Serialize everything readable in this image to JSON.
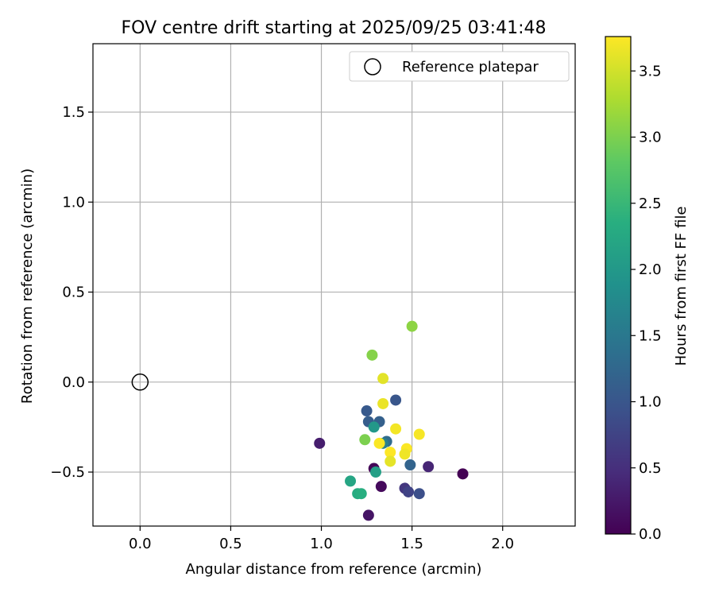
{
  "chart_data": {
    "type": "scatter",
    "title": "FOV centre drift starting at 2025/09/25 03:41:48",
    "xlabel": "Angular distance from reference (arcmin)",
    "ylabel": "Rotation from reference (arcmin)",
    "xlim": [
      -0.26,
      2.4
    ],
    "ylim": [
      -0.8,
      1.88
    ],
    "xticks": [
      0.0,
      0.5,
      1.0,
      1.5,
      2.0
    ],
    "xtick_labels": [
      "0.0",
      "0.5",
      "1.0",
      "1.5",
      "2.0"
    ],
    "yticks": [
      -0.5,
      0.0,
      0.5,
      1.0,
      1.5
    ],
    "ytick_labels": [
      "−0.5",
      "0.0",
      "0.5",
      "1.0",
      "1.5"
    ],
    "grid": true,
    "legend": {
      "label": "Reference platepar",
      "position": "top-right"
    },
    "reference_point": {
      "x": 0.0,
      "y": 0.0
    },
    "colorbar": {
      "label": "Hours from first FF file",
      "colormap": "viridis",
      "range": [
        0.0,
        3.76
      ],
      "ticks": [
        0.0,
        0.5,
        1.0,
        1.5,
        2.0,
        2.5,
        3.0,
        3.5
      ],
      "tick_labels": [
        "0.0",
        "0.5",
        "1.0",
        "1.5",
        "2.0",
        "2.5",
        "3.0",
        "3.5"
      ]
    },
    "points": [
      {
        "x": 1.78,
        "y": -0.51,
        "hours": 0.0
      },
      {
        "x": 1.29,
        "y": -0.48,
        "hours": 0.05
      },
      {
        "x": 1.33,
        "y": -0.58,
        "hours": 0.1
      },
      {
        "x": 1.26,
        "y": -0.74,
        "hours": 0.2
      },
      {
        "x": 0.99,
        "y": -0.34,
        "hours": 0.3
      },
      {
        "x": 1.59,
        "y": -0.47,
        "hours": 0.4
      },
      {
        "x": 1.46,
        "y": -0.59,
        "hours": 0.6
      },
      {
        "x": 1.48,
        "y": -0.61,
        "hours": 0.75
      },
      {
        "x": 1.54,
        "y": -0.62,
        "hours": 0.9
      },
      {
        "x": 1.41,
        "y": -0.1,
        "hours": 1.0
      },
      {
        "x": 1.25,
        "y": -0.16,
        "hours": 1.05
      },
      {
        "x": 1.26,
        "y": -0.22,
        "hours": 1.1
      },
      {
        "x": 1.32,
        "y": -0.22,
        "hours": 1.15
      },
      {
        "x": 1.49,
        "y": -0.46,
        "hours": 1.2
      },
      {
        "x": 1.36,
        "y": -0.33,
        "hours": 1.3
      },
      {
        "x": 1.34,
        "y": -0.34,
        "hours": 1.6
      },
      {
        "x": 1.29,
        "y": -0.25,
        "hours": 2.0
      },
      {
        "x": 1.3,
        "y": -0.5,
        "hours": 2.1
      },
      {
        "x": 1.16,
        "y": -0.55,
        "hours": 2.2
      },
      {
        "x": 1.2,
        "y": -0.62,
        "hours": 2.3
      },
      {
        "x": 1.22,
        "y": -0.62,
        "hours": 2.35
      },
      {
        "x": 1.24,
        "y": -0.32,
        "hours": 3.0
      },
      {
        "x": 1.28,
        "y": 0.15,
        "hours": 3.05
      },
      {
        "x": 1.5,
        "y": 0.31,
        "hours": 3.1
      },
      {
        "x": 1.34,
        "y": 0.02,
        "hours": 3.6
      },
      {
        "x": 1.34,
        "y": -0.12,
        "hours": 3.65
      },
      {
        "x": 1.41,
        "y": -0.26,
        "hours": 3.7
      },
      {
        "x": 1.54,
        "y": -0.29,
        "hours": 3.72
      },
      {
        "x": 1.32,
        "y": -0.34,
        "hours": 3.74
      },
      {
        "x": 1.47,
        "y": -0.37,
        "hours": 3.75
      },
      {
        "x": 1.38,
        "y": -0.39,
        "hours": 3.76
      },
      {
        "x": 1.46,
        "y": -0.4,
        "hours": 3.68
      },
      {
        "x": 1.38,
        "y": -0.44,
        "hours": 3.62
      }
    ]
  }
}
